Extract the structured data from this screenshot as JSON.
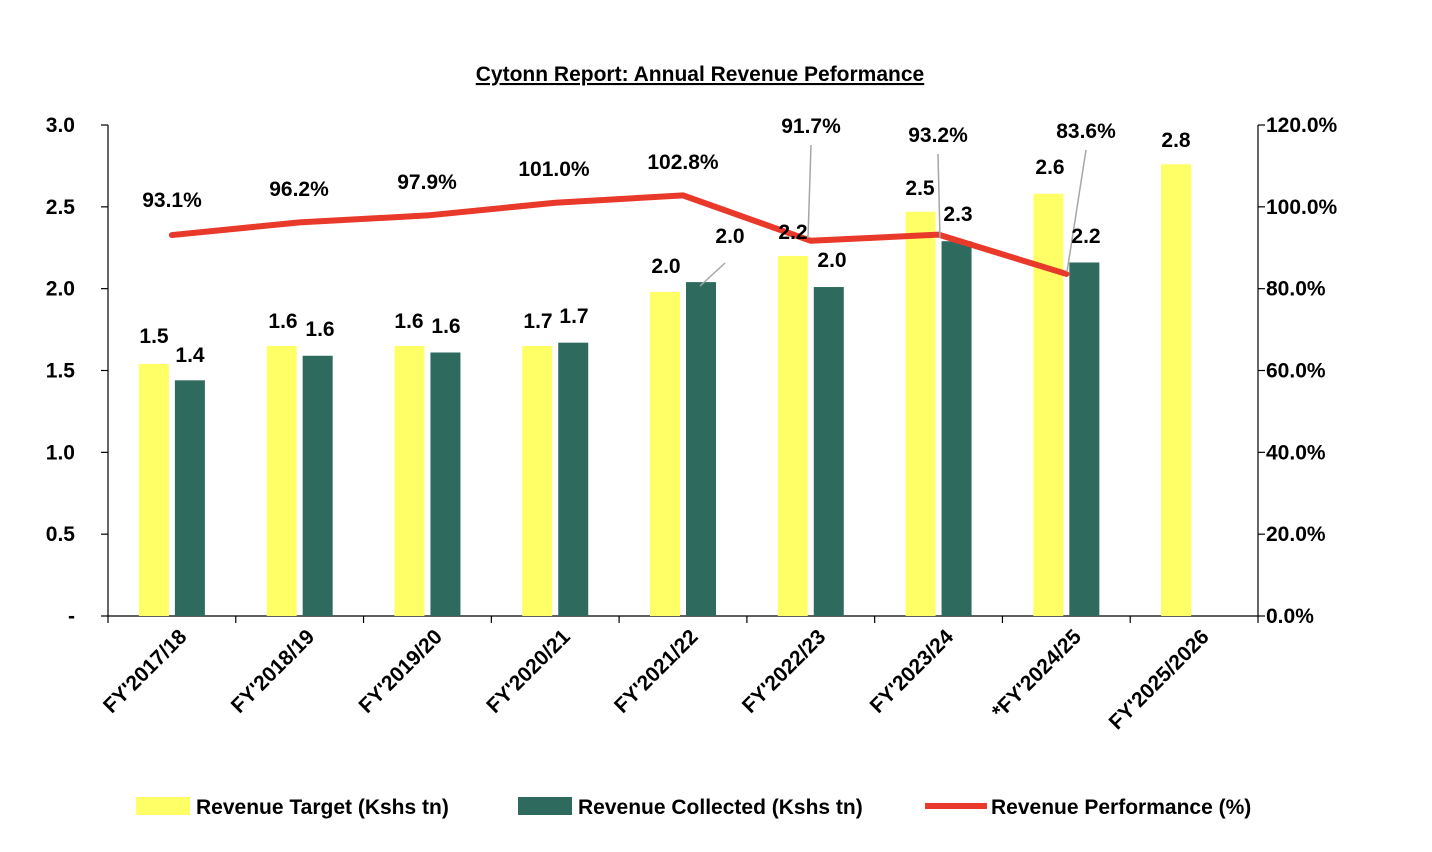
{
  "chart_data": {
    "type": "bar",
    "title": "Cytonn Report: Annual Revenue Peformance",
    "categories": [
      "FY'2017/18",
      "FY'2018/19",
      "FY'2019/20",
      "FY'2020/21",
      "FY'2021/22",
      "FY'2022/23",
      "FY'2023/24",
      "*FY'2024/25",
      "FY'2025/2026"
    ],
    "ylim": [
      0,
      3.0
    ],
    "y2lim": [
      0,
      120
    ],
    "yticks": [
      "-",
      "0.5",
      "1.0",
      "1.5",
      "2.0",
      "2.5",
      "3.0"
    ],
    "y2ticks": [
      "0.0%",
      "20.0%",
      "40.0%",
      "60.0%",
      "80.0%",
      "100.0%",
      "120.0%"
    ],
    "legend_position": "bottom",
    "grid": false,
    "series": [
      {
        "name": "Revenue Target (Kshs tn)",
        "type": "bar",
        "axis": "left",
        "color": "#FFFF66",
        "values": [
          1.54,
          1.65,
          1.65,
          1.65,
          1.98,
          2.2,
          2.47,
          2.58,
          2.76
        ],
        "labels": [
          "1.5",
          "1.6",
          "1.6",
          "1.7",
          "2.0",
          "2.2",
          "2.5",
          "2.6",
          "2.8"
        ]
      },
      {
        "name": "Revenue Collected (Kshs tn)",
        "type": "bar",
        "axis": "left",
        "color": "#2E6B5E",
        "values": [
          1.44,
          1.59,
          1.61,
          1.67,
          2.04,
          2.01,
          2.29,
          2.16,
          null
        ],
        "labels": [
          "1.4",
          "1.6",
          "1.6",
          "1.7",
          "2.0",
          "2.0",
          "2.3",
          "2.2",
          null
        ]
      },
      {
        "name": "Revenue Performance (%)",
        "type": "line",
        "axis": "right",
        "color": "#E8392B",
        "values": [
          93.1,
          96.2,
          97.9,
          101.0,
          102.8,
          91.7,
          93.2,
          83.6,
          null
        ],
        "labels": [
          "93.1%",
          "96.2%",
          "97.9%",
          "101.0%",
          "102.8%",
          "91.7%",
          "93.2%",
          "83.6%",
          null
        ]
      }
    ]
  }
}
